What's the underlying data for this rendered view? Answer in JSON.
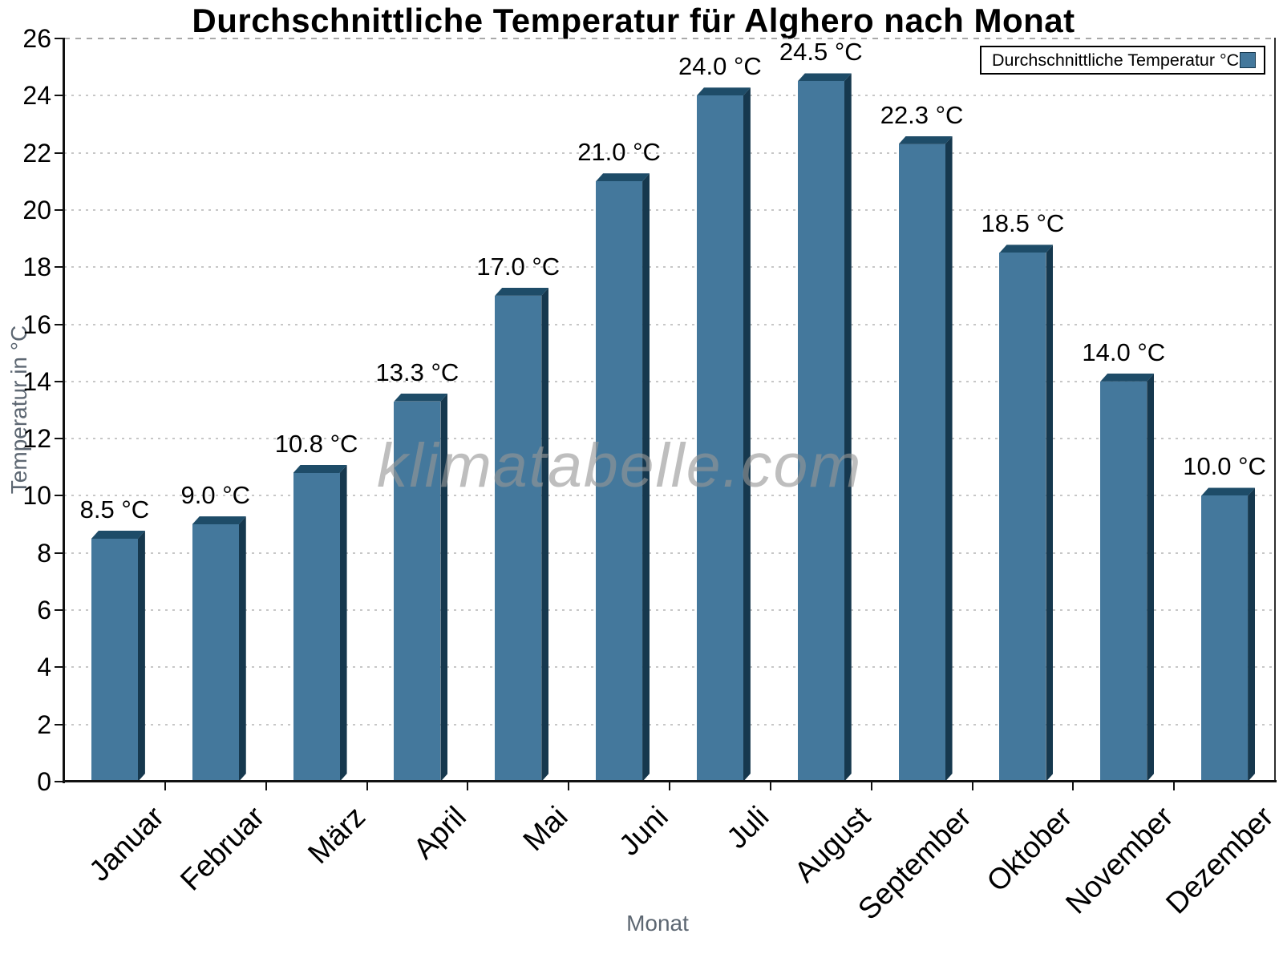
{
  "chart_data": {
    "type": "bar",
    "title": "Durchschnittliche Temperatur für Alghero nach Monat",
    "xlabel": "Monat",
    "ylabel": "Temperatur in °C",
    "categories": [
      "Januar",
      "Februar",
      "März",
      "April",
      "Mai",
      "Juni",
      "Juli",
      "August",
      "September",
      "Oktober",
      "November",
      "Dezember"
    ],
    "values": [
      8.5,
      9.0,
      10.8,
      13.3,
      17.0,
      21.0,
      24.0,
      24.5,
      22.3,
      18.5,
      14.0,
      10.0
    ],
    "value_labels": [
      "8.5 °C",
      "9.0 °C",
      "10.8 °C",
      "13.3 °C",
      "17.0 °C",
      "21.0 °C",
      "24.0 °C",
      "24.5 °C",
      "22.3 °C",
      "18.5 °C",
      "14.0 °C",
      "10.0 °C"
    ],
    "ylim": [
      0,
      26
    ],
    "ytick_step": 2,
    "grid": true,
    "legend": {
      "label": "Durchschnittliche Temperatur °C",
      "position": "top-right"
    },
    "watermark": "klimatabelle.com",
    "colors": {
      "bar_front": "#44789c",
      "bar_side": "#16384e",
      "bar_top": "#1e4c68",
      "axis": "#111111",
      "grid": "#c7c7c7",
      "axis_title_gray": "#5d6772"
    }
  }
}
